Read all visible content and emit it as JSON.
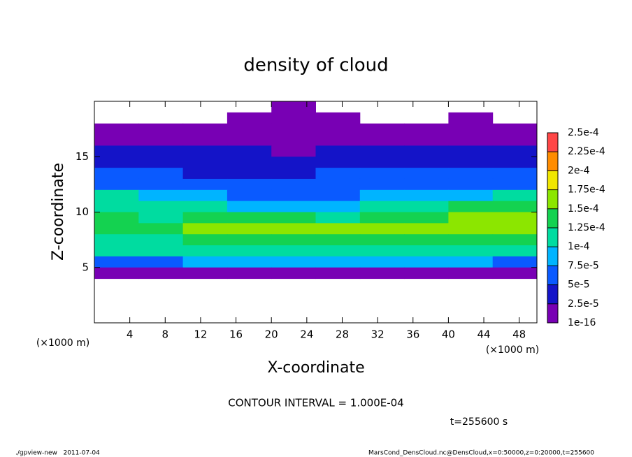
{
  "chart_data": {
    "type": "heatmap",
    "title": "density of cloud",
    "x_label": "X-coordinate",
    "y_label": "Z-coordinate",
    "x_unit": "(×1000 m)",
    "y_unit": "(×1000 m)",
    "contour_note": "CONTOUR INTERVAL = 1.000E-04",
    "time_label": "t=255600 s",
    "footer_left": "./gpview-new   2011-07-04",
    "footer_right": "MarsCond_DensCloud.nc@DensCloud,x=0:50000,z=0:20000,t=255600",
    "xlim": [
      0,
      50
    ],
    "ylim": [
      0,
      20
    ],
    "xticks": [
      4,
      8,
      12,
      16,
      20,
      24,
      28,
      32,
      36,
      40,
      44,
      48
    ],
    "yticks": [
      5,
      10,
      15
    ],
    "x": [
      2.5,
      7.5,
      12.5,
      17.5,
      22.5,
      27.5,
      32.5,
      37.5,
      42.5,
      47.5
    ],
    "y": [
      19.5,
      18.5,
      17.5,
      16.5,
      15.5,
      14.5,
      13.5,
      12.5,
      11.5,
      10.5,
      9.5,
      8.5,
      7.5,
      6.5,
      5.5,
      4.5
    ],
    "z": [
      [
        null,
        null,
        null,
        null,
        1e-05,
        null,
        null,
        null,
        null,
        null
      ],
      [
        null,
        null,
        null,
        1e-05,
        1e-05,
        1e-05,
        null,
        null,
        1e-05,
        null
      ],
      [
        1e-05,
        1e-05,
        1e-05,
        1e-05,
        1e-05,
        1e-05,
        1e-05,
        1e-05,
        1e-05,
        1e-05
      ],
      [
        2e-05,
        2e-05,
        1e-05,
        2e-05,
        1e-05,
        1e-05,
        2e-05,
        1e-05,
        1e-05,
        2e-05
      ],
      [
        3e-05,
        3e-05,
        3e-05,
        3e-05,
        2e-05,
        3e-05,
        3e-05,
        3e-05,
        3e-05,
        3e-05
      ],
      [
        4e-05,
        4e-05,
        4e-05,
        3e-05,
        3e-05,
        4e-05,
        4e-05,
        4e-05,
        4e-05,
        4e-05
      ],
      [
        5e-05,
        5e-05,
        4e-05,
        4e-05,
        4e-05,
        5e-05,
        5e-05,
        5e-05,
        5e-05,
        5e-05
      ],
      [
        7e-05,
        7e-05,
        6e-05,
        5e-05,
        5e-05,
        6e-05,
        6e-05,
        7e-05,
        7e-05,
        7e-05
      ],
      [
        0.0001,
        9e-05,
        8e-05,
        7e-05,
        7e-05,
        7e-05,
        8e-05,
        9e-05,
        9e-05,
        0.0001
      ],
      [
        0.00012,
        0.00011,
        0.0001,
        9e-05,
        9e-05,
        9e-05,
        0.0001,
        0.00011,
        0.00013,
        0.00014
      ],
      [
        0.00013,
        0.00012,
        0.00013,
        0.00013,
        0.00013,
        0.00012,
        0.00013,
        0.00014,
        0.00016,
        0.00017
      ],
      [
        0.00013,
        0.00013,
        0.00016,
        0.00017,
        0.00016,
        0.00015,
        0.00015,
        0.00015,
        0.00015,
        0.00015
      ],
      [
        0.00012,
        0.00012,
        0.00013,
        0.00014,
        0.00013,
        0.00013,
        0.00013,
        0.00013,
        0.00013,
        0.00013
      ],
      [
        0.0001,
        0.0001,
        0.00011,
        0.00011,
        0.00011,
        0.00011,
        0.00011,
        0.00011,
        0.00011,
        0.0001
      ],
      [
        7e-05,
        7e-05,
        8e-05,
        8e-05,
        8e-05,
        8e-05,
        8e-05,
        8e-05,
        8e-05,
        7e-05
      ],
      [
        1e-05,
        1e-05,
        1e-05,
        1e-05,
        1e-05,
        1e-05,
        1e-05,
        1e-05,
        1e-05,
        1e-05
      ]
    ],
    "levels": [
      {
        "value": 1e-16,
        "label": "1e-16"
      },
      {
        "value": 2.5e-05,
        "label": "2.5e-5"
      },
      {
        "value": 5e-05,
        "label": "5e-5"
      },
      {
        "value": 7.5e-05,
        "label": "7.5e-5"
      },
      {
        "value": 0.0001,
        "label": "1e-4"
      },
      {
        "value": 0.000125,
        "label": "1.25e-4"
      },
      {
        "value": 0.00015,
        "label": "1.5e-4"
      },
      {
        "value": 0.000175,
        "label": "1.75e-4"
      },
      {
        "value": 0.0002,
        "label": "2e-4"
      },
      {
        "value": 0.000225,
        "label": "2.25e-4"
      },
      {
        "value": 0.00025,
        "label": "2.5e-4"
      }
    ],
    "colors": [
      "#7800b4",
      "#1414c8",
      "#0a5aff",
      "#00b4ff",
      "#00dca0",
      "#14d250",
      "#8ce600",
      "#f0e600",
      "#ff8c00",
      "#ff4646",
      "#ff9090"
    ]
  }
}
